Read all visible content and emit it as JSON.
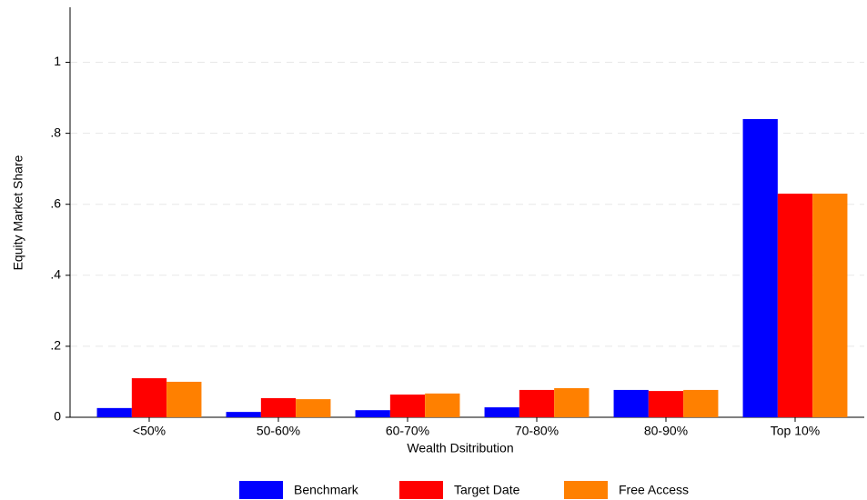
{
  "chart_data": {
    "type": "bar",
    "x_label": "Wealth Dsitribution",
    "y_label": "Equity Market Share",
    "categories": [
      "<50%",
      "50-60%",
      "60-70%",
      "70-80%",
      "80-90%",
      "Top 10%"
    ],
    "series": [
      {
        "name": "Benchmark",
        "color": "#0000ff",
        "values": [
          0.026,
          0.015,
          0.02,
          0.028,
          0.077,
          0.84
        ]
      },
      {
        "name": "Target Date",
        "color": "#ff0000",
        "values": [
          0.11,
          0.054,
          0.064,
          0.077,
          0.074,
          0.63
        ]
      },
      {
        "name": "Free Access",
        "color": "#ff8000",
        "values": [
          0.1,
          0.051,
          0.067,
          0.082,
          0.077,
          0.63
        ]
      }
    ],
    "ylim": [
      0,
      1.155
    ],
    "yticks": [
      0,
      {
        "value": 0.2,
        "label": ".2"
      },
      {
        "value": 0.4,
        "label": ".4"
      },
      {
        "value": 0.6,
        "label": ".6"
      },
      {
        "value": 0.8,
        "label": ".8"
      },
      1
    ],
    "grid": true,
    "legend": "bottom"
  }
}
